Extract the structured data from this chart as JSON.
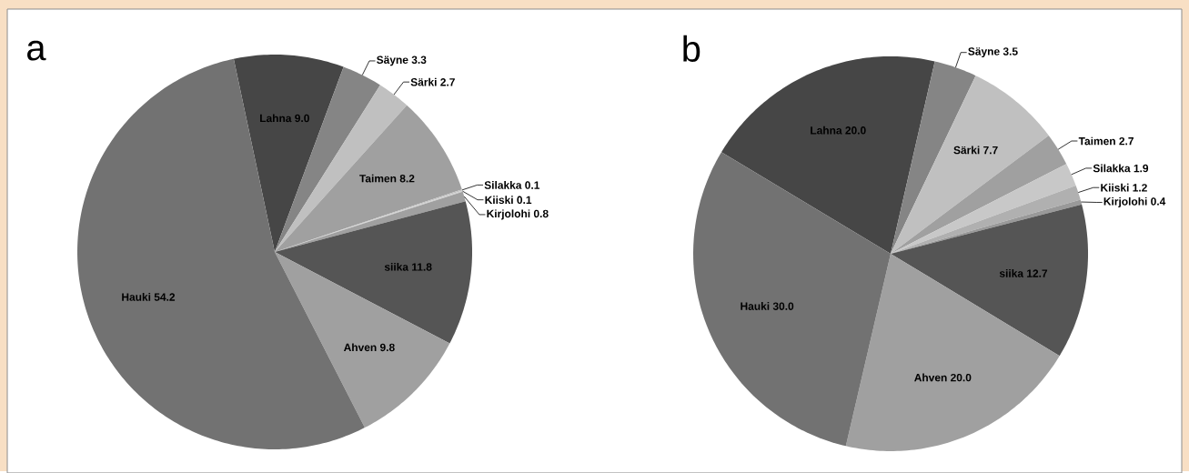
{
  "chart_data": [
    {
      "type": "pie",
      "title": "a",
      "categories": [
        "Lahna",
        "Säyne",
        "Särki",
        "Taimen",
        "Silakka",
        "Kiiski",
        "Kirjolohi",
        "siika",
        "Ahven",
        "Hauki"
      ],
      "values": [
        9.0,
        3.3,
        2.7,
        8.2,
        0.1,
        0.1,
        0.8,
        11.8,
        9.8,
        54.2
      ],
      "value_labels": [
        "9.0",
        "3.3",
        "2.7",
        "8.2",
        "0.1",
        "0.1",
        "0.8",
        "11.8",
        "9.8",
        "54.2"
      ],
      "colors": [
        "#464646",
        "#858585",
        "#c0c0c0",
        "#a0a0a0",
        "#c0c0c0",
        "#d0d0d0",
        "#a0a0a0",
        "#555555",
        "#a0a0a0",
        "#727272"
      ]
    },
    {
      "type": "pie",
      "title": "b",
      "categories": [
        "Lahna",
        "Säyne",
        "Särki",
        "Taimen",
        "Silakka",
        "Kiiski",
        "Kirjolohi",
        "siika",
        "Ahven",
        "Hauki"
      ],
      "values": [
        20.0,
        3.5,
        7.7,
        2.7,
        1.9,
        1.2,
        0.4,
        12.7,
        20.0,
        30.0
      ],
      "value_labels": [
        "20.0",
        "3.5",
        "7.7",
        "2.7",
        "1.9",
        "1.2",
        "0.4",
        "12.7",
        "20.0",
        "30.0"
      ],
      "colors": [
        "#464646",
        "#858585",
        "#c0c0c0",
        "#a0a0a0",
        "#c8c8c8",
        "#b0b0b0",
        "#999999",
        "#555555",
        "#a0a0a0",
        "#727272"
      ]
    }
  ]
}
